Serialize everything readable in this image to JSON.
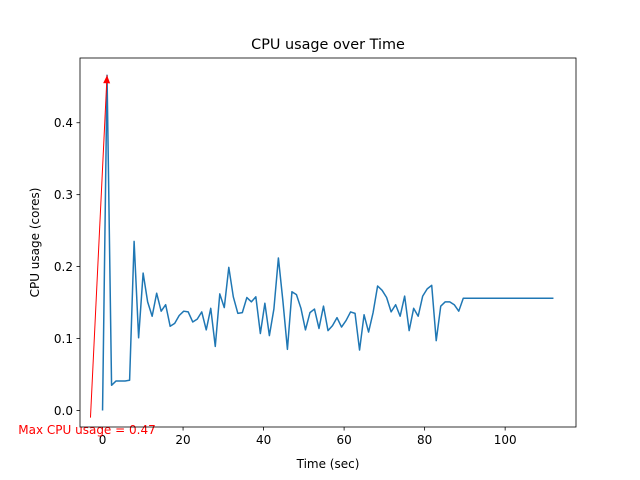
{
  "chart_data": {
    "type": "line",
    "title": "CPU usage over Time",
    "xlabel": "Time (sec)",
    "ylabel": "CPU usage (cores)",
    "xlim": [
      -5.6,
      117.6
    ],
    "ylim": [
      -0.023,
      0.49
    ],
    "xticks": [
      0,
      20,
      40,
      60,
      80,
      100
    ],
    "xtick_labels": [
      "0",
      "20",
      "40",
      "60",
      "80",
      "100"
    ],
    "yticks": [
      0.0,
      0.1,
      0.2,
      0.3,
      0.4
    ],
    "ytick_labels": [
      "0.0",
      "0.1",
      "0.2",
      "0.3",
      "0.4"
    ],
    "grid": false,
    "series": [
      {
        "name": "CPU usage",
        "color": "#1f77b4",
        "x": [
          0,
          1.12,
          2.24,
          3.36,
          4.48,
          5.6,
          6.72,
          7.84,
          8.96,
          10.08,
          11.2,
          12.32,
          13.44,
          14.56,
          15.68,
          16.8,
          17.92,
          19.04,
          20.16,
          21.28,
          22.4,
          23.52,
          24.64,
          25.76,
          26.88,
          28,
          29.12,
          30.24,
          31.36,
          32.48,
          33.6,
          34.72,
          35.84,
          36.96,
          38.08,
          39.2,
          40.32,
          41.44,
          42.56,
          43.68,
          44.8,
          45.92,
          47.04,
          48.16,
          49.28,
          50.4,
          51.52,
          52.64,
          53.76,
          54.88,
          56,
          57.12,
          58.24,
          59.36,
          60.48,
          61.6,
          62.72,
          63.84,
          64.96,
          66.08,
          67.2,
          68.32,
          69.44,
          70.56,
          71.68,
          72.8,
          73.92,
          75.04,
          76.16,
          77.28,
          78.4,
          79.52,
          80.64,
          81.76,
          82.88,
          84,
          85.12,
          86.24,
          87.36,
          88.48,
          89.6,
          90.72,
          91.84,
          92.96,
          94.08,
          95.2,
          96.32,
          97.44,
          98.56,
          99.68,
          100.8,
          101.92,
          103.04,
          104.16,
          105.28,
          106.4,
          107.52,
          108.64,
          109.76,
          110.88,
          112
        ],
        "values": [
          0.0,
          0.466,
          0.035,
          0.041,
          0.041,
          0.041,
          0.042,
          0.235,
          0.101,
          0.191,
          0.151,
          0.131,
          0.163,
          0.138,
          0.147,
          0.117,
          0.121,
          0.132,
          0.138,
          0.137,
          0.123,
          0.127,
          0.137,
          0.112,
          0.142,
          0.089,
          0.162,
          0.143,
          0.199,
          0.158,
          0.135,
          0.136,
          0.157,
          0.151,
          0.158,
          0.107,
          0.149,
          0.104,
          0.141,
          0.212,
          0.152,
          0.085,
          0.165,
          0.161,
          0.142,
          0.112,
          0.136,
          0.141,
          0.114,
          0.145,
          0.111,
          0.118,
          0.129,
          0.116,
          0.125,
          0.137,
          0.135,
          0.084,
          0.133,
          0.109,
          0.136,
          0.173,
          0.167,
          0.157,
          0.137,
          0.147,
          0.131,
          0.159,
          0.111,
          0.142,
          0.131,
          0.159,
          0.169,
          0.174,
          0.097,
          0.145,
          0.151,
          0.151,
          0.147,
          0.138,
          0.156,
          0.156,
          0.156,
          0.156,
          0.156,
          0.156,
          0.156,
          0.156,
          0.156,
          0.156,
          0.156,
          0.156,
          0.156,
          0.156,
          0.156,
          0.156,
          0.156,
          0.156,
          0.156,
          0.156,
          0.156
        ]
      }
    ],
    "annotation": {
      "text": "Max CPU usage = 0.47",
      "color": "#ff0000",
      "text_x": -3.0,
      "text_y": -0.01,
      "arrow_to_x": 1.12,
      "arrow_to_y": 0.466
    }
  }
}
